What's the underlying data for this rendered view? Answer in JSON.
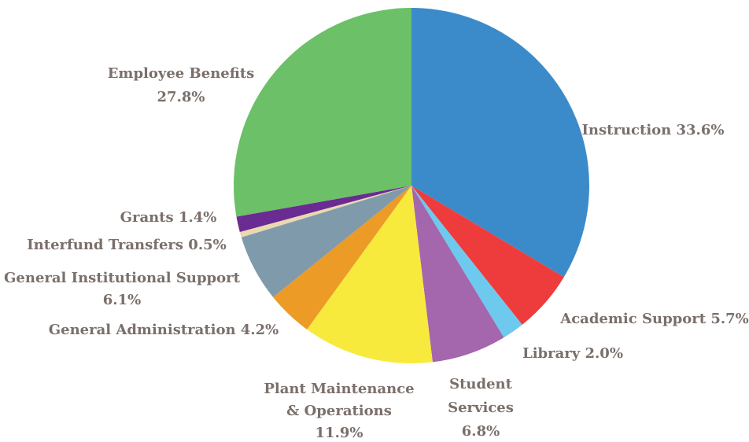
{
  "chart_data": {
    "type": "pie",
    "title": "",
    "start": "12 o'clock",
    "direction": "clockwise",
    "slices": [
      {
        "label": "Instruction",
        "value": 33.6,
        "value_label": "33.6%",
        "color": "#3b8bca"
      },
      {
        "label": "Academic Support",
        "value": 5.7,
        "value_label": "5.7%",
        "color": "#ee3b3b"
      },
      {
        "label": "Library",
        "value": 2.0,
        "value_label": "2.0%",
        "color": "#6ec9ef"
      },
      {
        "label": "Student Services",
        "value": 6.8,
        "value_label": "6.8%",
        "color": "#a466ac"
      },
      {
        "label": "Plant Maintenance & Operations",
        "value": 11.9,
        "value_label": "11.9%",
        "color": "#f7ea3c"
      },
      {
        "label": "General Administration",
        "value": 4.2,
        "value_label": "4.2%",
        "color": "#ec9b26"
      },
      {
        "label": "General Institutional Support",
        "value": 6.1,
        "value_label": "6.1%",
        "color": "#7f9bab"
      },
      {
        "label": "Interfund Transfers",
        "value": 0.5,
        "value_label": "0.5%",
        "color": "#ead8b0"
      },
      {
        "label": "Grants",
        "value": 1.4,
        "value_label": "1.4%",
        "color": "#6a2b92"
      },
      {
        "label": "Employee Benefits",
        "value": 27.8,
        "value_label": "27.8%",
        "color": "#6cc067"
      }
    ],
    "label_color": "#7a6f6a"
  }
}
